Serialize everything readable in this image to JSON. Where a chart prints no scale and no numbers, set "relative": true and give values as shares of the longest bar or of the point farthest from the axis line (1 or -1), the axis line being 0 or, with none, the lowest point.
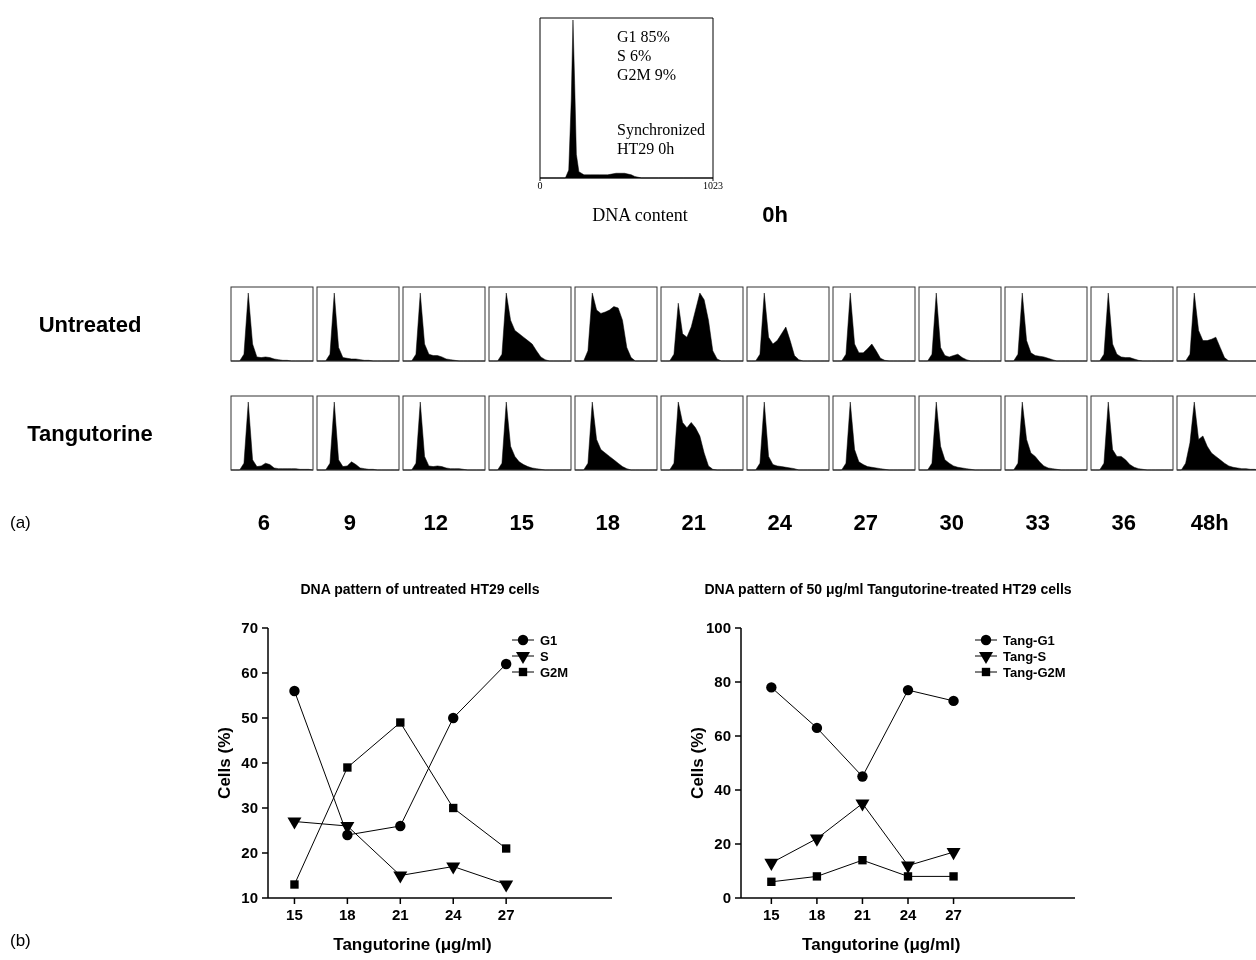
{
  "chart_data": [
    {
      "type": "area",
      "xlabel": "DNA content",
      "relative": true,
      "color": "#000000",
      "xlim": [
        0,
        1023
      ],
      "xticks": [
        0,
        1023
      ],
      "x": [
        0,
        100,
        150,
        170,
        185,
        195,
        205,
        215,
        230,
        260,
        300,
        350,
        400,
        450,
        500,
        540,
        560,
        600,
        700,
        850,
        1023
      ],
      "values": [
        0,
        0,
        0,
        0.05,
        0.5,
        1,
        0.6,
        0.15,
        0.04,
        0.02,
        0.02,
        0.02,
        0.02,
        0.03,
        0.03,
        0.02,
        0.01,
        0,
        0,
        0,
        0
      ],
      "annotations": [
        "G1 85%\nS 6%\nG2M 9%",
        "Synchronized\nHT29 0h",
        "0h"
      ]
    },
    {
      "type": "area",
      "ylabel": "Untreated",
      "relative": true,
      "color": "#000000",
      "categories": [
        null,
        null,
        null,
        null,
        null,
        null,
        null,
        null,
        null,
        null,
        null,
        null,
        null,
        null,
        null,
        null,
        null,
        null,
        null,
        null
      ],
      "values": [
        0,
        0,
        0,
        0.1,
        1,
        0.25,
        0.06,
        0.05,
        0.06,
        0.05,
        0.03,
        0.02,
        0.01,
        0.01,
        0,
        0,
        0,
        0,
        0,
        0
      ]
    },
    {
      "type": "area",
      "relative": true,
      "color": "#000000",
      "categories": [
        null,
        null,
        null,
        null,
        null,
        null,
        null,
        null,
        null,
        null,
        null,
        null,
        null,
        null,
        null,
        null,
        null,
        null,
        null,
        null
      ],
      "values": [
        0,
        0,
        0,
        0.1,
        1,
        0.2,
        0.05,
        0.04,
        0.03,
        0.03,
        0.02,
        0.01,
        0.01,
        0,
        0,
        0,
        0,
        0,
        0,
        0
      ]
    },
    {
      "type": "area",
      "relative": true,
      "color": "#000000",
      "categories": [
        null,
        null,
        null,
        null,
        null,
        null,
        null,
        null,
        null,
        null,
        null,
        null,
        null,
        null,
        null,
        null,
        null,
        null,
        null,
        null
      ],
      "values": [
        0,
        0,
        0,
        0.1,
        1,
        0.25,
        0.1,
        0.08,
        0.08,
        0.06,
        0.03,
        0.02,
        0.01,
        0,
        0,
        0,
        0,
        0,
        0,
        0
      ]
    },
    {
      "type": "area",
      "relative": true,
      "color": "#000000",
      "categories": [
        null,
        null,
        null,
        null,
        null,
        null,
        null,
        null,
        null,
        null,
        null,
        null,
        null,
        null,
        null,
        null,
        null,
        null,
        null,
        null
      ],
      "values": [
        0,
        0,
        0,
        0.1,
        1,
        0.6,
        0.45,
        0.4,
        0.35,
        0.3,
        0.25,
        0.15,
        0.06,
        0.02,
        0,
        0,
        0,
        0,
        0,
        0
      ]
    },
    {
      "type": "area",
      "relative": true,
      "color": "#000000",
      "categories": [
        null,
        null,
        null,
        null,
        null,
        null,
        null,
        null,
        null,
        null,
        null,
        null,
        null,
        null,
        null,
        null,
        null,
        null,
        null,
        null
      ],
      "values": [
        0,
        0,
        0,
        0.15,
        1,
        0.75,
        0.7,
        0.72,
        0.75,
        0.8,
        0.78,
        0.6,
        0.2,
        0.05,
        0,
        0,
        0,
        0,
        0,
        0
      ]
    },
    {
      "type": "area",
      "relative": true,
      "color": "#000000",
      "categories": [
        null,
        null,
        null,
        null,
        null,
        null,
        null,
        null,
        null,
        null,
        null,
        null,
        null,
        null,
        null,
        null,
        null,
        null,
        null,
        null
      ],
      "values": [
        0,
        0,
        0,
        0.1,
        0.85,
        0.4,
        0.35,
        0.5,
        0.75,
        1,
        0.9,
        0.6,
        0.15,
        0.03,
        0,
        0,
        0,
        0,
        0,
        0
      ]
    },
    {
      "type": "area",
      "relative": true,
      "color": "#000000",
      "categories": [
        null,
        null,
        null,
        null,
        null,
        null,
        null,
        null,
        null,
        null,
        null,
        null,
        null,
        null,
        null,
        null,
        null,
        null,
        null,
        null
      ],
      "values": [
        0,
        0,
        0,
        0.1,
        1,
        0.35,
        0.25,
        0.3,
        0.4,
        0.5,
        0.3,
        0.08,
        0.02,
        0,
        0,
        0,
        0,
        0,
        0,
        0
      ]
    },
    {
      "type": "area",
      "relative": true,
      "color": "#000000",
      "categories": [
        null,
        null,
        null,
        null,
        null,
        null,
        null,
        null,
        null,
        null,
        null,
        null,
        null,
        null,
        null,
        null,
        null,
        null,
        null,
        null
      ],
      "values": [
        0,
        0,
        0,
        0.1,
        1,
        0.25,
        0.12,
        0.12,
        0.18,
        0.25,
        0.15,
        0.04,
        0.01,
        0,
        0,
        0,
        0,
        0,
        0,
        0
      ]
    },
    {
      "type": "area",
      "relative": true,
      "color": "#000000",
      "categories": [
        null,
        null,
        null,
        null,
        null,
        null,
        null,
        null,
        null,
        null,
        null,
        null,
        null,
        null,
        null,
        null,
        null,
        null,
        null,
        null
      ],
      "values": [
        0,
        0,
        0,
        0.1,
        1,
        0.2,
        0.08,
        0.06,
        0.08,
        0.1,
        0.05,
        0.02,
        0,
        0,
        0,
        0,
        0,
        0,
        0,
        0
      ]
    },
    {
      "type": "area",
      "relative": true,
      "color": "#000000",
      "categories": [
        null,
        null,
        null,
        null,
        null,
        null,
        null,
        null,
        null,
        null,
        null,
        null,
        null,
        null,
        null,
        null,
        null,
        null,
        null,
        null
      ],
      "values": [
        0,
        0,
        0,
        0.1,
        1,
        0.3,
        0.12,
        0.08,
        0.07,
        0.06,
        0.04,
        0.02,
        0,
        0,
        0,
        0,
        0,
        0,
        0,
        0
      ]
    },
    {
      "type": "area",
      "relative": true,
      "color": "#000000",
      "categories": [
        null,
        null,
        null,
        null,
        null,
        null,
        null,
        null,
        null,
        null,
        null,
        null,
        null,
        null,
        null,
        null,
        null,
        null,
        null,
        null
      ],
      "values": [
        0,
        0,
        0,
        0.1,
        1,
        0.25,
        0.1,
        0.06,
        0.05,
        0.05,
        0.03,
        0.01,
        0,
        0,
        0,
        0,
        0,
        0,
        0,
        0
      ]
    },
    {
      "type": "area",
      "relative": true,
      "color": "#000000",
      "categories": [
        null,
        null,
        null,
        null,
        null,
        null,
        null,
        null,
        null,
        null,
        null,
        null,
        null,
        null,
        null,
        null,
        null,
        null,
        null,
        null
      ],
      "values": [
        0,
        0,
        0,
        0.1,
        1,
        0.45,
        0.3,
        0.3,
        0.32,
        0.35,
        0.2,
        0.05,
        0,
        0,
        0,
        0,
        0,
        0,
        0,
        0
      ]
    },
    {
      "type": "area",
      "ylabel": "Tangutorine",
      "xlabel": "6",
      "annotations": [
        "(a)"
      ],
      "relative": true,
      "color": "#000000",
      "categories": [
        null,
        null,
        null,
        null,
        null,
        null,
        null,
        null,
        null,
        null,
        null,
        null,
        null,
        null,
        null,
        null,
        null,
        null,
        null,
        null
      ],
      "values": [
        0,
        0,
        0,
        0.1,
        1,
        0.15,
        0.05,
        0.06,
        0.1,
        0.08,
        0.03,
        0.02,
        0.02,
        0.02,
        0.02,
        0.02,
        0.01,
        0.01,
        0.01,
        0
      ]
    },
    {
      "type": "area",
      "xlabel": "9",
      "relative": true,
      "color": "#000000",
      "categories": [
        null,
        null,
        null,
        null,
        null,
        null,
        null,
        null,
        null,
        null,
        null,
        null,
        null,
        null,
        null,
        null,
        null,
        null,
        null,
        null
      ],
      "values": [
        0,
        0,
        0,
        0.1,
        1,
        0.15,
        0.05,
        0.06,
        0.12,
        0.08,
        0.03,
        0.02,
        0.01,
        0.01,
        0,
        0,
        0,
        0,
        0,
        0
      ]
    },
    {
      "type": "area",
      "xlabel": "12",
      "relative": true,
      "color": "#000000",
      "categories": [
        null,
        null,
        null,
        null,
        null,
        null,
        null,
        null,
        null,
        null,
        null,
        null,
        null,
        null,
        null,
        null,
        null,
        null,
        null,
        null
      ],
      "values": [
        0,
        0,
        0,
        0.1,
        1,
        0.2,
        0.06,
        0.05,
        0.06,
        0.05,
        0.03,
        0.02,
        0.02,
        0.02,
        0.01,
        0,
        0,
        0,
        0,
        0
      ]
    },
    {
      "type": "area",
      "xlabel": "15",
      "relative": true,
      "color": "#000000",
      "categories": [
        null,
        null,
        null,
        null,
        null,
        null,
        null,
        null,
        null,
        null,
        null,
        null,
        null,
        null,
        null,
        null,
        null,
        null,
        null,
        null
      ],
      "values": [
        0,
        0,
        0,
        0.1,
        1,
        0.35,
        0.2,
        0.12,
        0.08,
        0.05,
        0.03,
        0.02,
        0.01,
        0,
        0,
        0,
        0,
        0,
        0,
        0
      ]
    },
    {
      "type": "area",
      "xlabel": "18",
      "relative": true,
      "color": "#000000",
      "categories": [
        null,
        null,
        null,
        null,
        null,
        null,
        null,
        null,
        null,
        null,
        null,
        null,
        null,
        null,
        null,
        null,
        null,
        null,
        null,
        null
      ],
      "values": [
        0,
        0,
        0,
        0.1,
        1,
        0.45,
        0.3,
        0.25,
        0.2,
        0.15,
        0.1,
        0.05,
        0.02,
        0,
        0,
        0,
        0,
        0,
        0,
        0
      ]
    },
    {
      "type": "area",
      "xlabel": "21",
      "relative": true,
      "color": "#000000",
      "categories": [
        null,
        null,
        null,
        null,
        null,
        null,
        null,
        null,
        null,
        null,
        null,
        null,
        null,
        null,
        null,
        null,
        null,
        null,
        null,
        null
      ],
      "values": [
        0,
        0,
        0,
        0.1,
        1,
        0.7,
        0.62,
        0.7,
        0.62,
        0.5,
        0.25,
        0.06,
        0.01,
        0,
        0,
        0,
        0,
        0,
        0,
        0
      ]
    },
    {
      "type": "area",
      "xlabel": "24",
      "relative": true,
      "color": "#000000",
      "categories": [
        null,
        null,
        null,
        null,
        null,
        null,
        null,
        null,
        null,
        null,
        null,
        null,
        null,
        null,
        null,
        null,
        null,
        null,
        null,
        null
      ],
      "values": [
        0,
        0,
        0,
        0.1,
        1,
        0.2,
        0.08,
        0.06,
        0.05,
        0.04,
        0.03,
        0.02,
        0,
        0,
        0,
        0,
        0,
        0,
        0,
        0
      ]
    },
    {
      "type": "area",
      "xlabel": "27",
      "relative": true,
      "color": "#000000",
      "categories": [
        null,
        null,
        null,
        null,
        null,
        null,
        null,
        null,
        null,
        null,
        null,
        null,
        null,
        null,
        null,
        null,
        null,
        null,
        null,
        null
      ],
      "values": [
        0,
        0,
        0,
        0.1,
        1,
        0.3,
        0.12,
        0.08,
        0.05,
        0.04,
        0.03,
        0.02,
        0.01,
        0,
        0,
        0,
        0,
        0,
        0,
        0
      ]
    },
    {
      "type": "area",
      "xlabel": "30",
      "relative": true,
      "color": "#000000",
      "categories": [
        null,
        null,
        null,
        null,
        null,
        null,
        null,
        null,
        null,
        null,
        null,
        null,
        null,
        null,
        null,
        null,
        null,
        null,
        null,
        null
      ],
      "values": [
        0,
        0,
        0,
        0.1,
        1,
        0.35,
        0.15,
        0.1,
        0.06,
        0.04,
        0.03,
        0.02,
        0.01,
        0,
        0,
        0,
        0,
        0,
        0,
        0
      ]
    },
    {
      "type": "area",
      "xlabel": "33",
      "relative": true,
      "color": "#000000",
      "categories": [
        null,
        null,
        null,
        null,
        null,
        null,
        null,
        null,
        null,
        null,
        null,
        null,
        null,
        null,
        null,
        null,
        null,
        null,
        null,
        null
      ],
      "values": [
        0,
        0,
        0,
        0.1,
        1,
        0.45,
        0.25,
        0.2,
        0.12,
        0.06,
        0.03,
        0.02,
        0.01,
        0,
        0,
        0,
        0,
        0,
        0,
        0
      ]
    },
    {
      "type": "area",
      "xlabel": "36",
      "relative": true,
      "color": "#000000",
      "categories": [
        null,
        null,
        null,
        null,
        null,
        null,
        null,
        null,
        null,
        null,
        null,
        null,
        null,
        null,
        null,
        null,
        null,
        null,
        null,
        null
      ],
      "values": [
        0,
        0,
        0,
        0.1,
        1,
        0.3,
        0.2,
        0.2,
        0.15,
        0.08,
        0.04,
        0.02,
        0.01,
        0,
        0,
        0,
        0,
        0,
        0,
        0
      ]
    },
    {
      "type": "area",
      "xlabel": "48h",
      "relative": true,
      "color": "#000000",
      "categories": [
        null,
        null,
        null,
        null,
        null,
        null,
        null,
        null,
        null,
        null,
        null,
        null,
        null,
        null,
        null,
        null,
        null,
        null,
        null,
        null
      ],
      "values": [
        0,
        0,
        0.1,
        0.4,
        1,
        0.45,
        0.5,
        0.35,
        0.25,
        0.2,
        0.15,
        0.1,
        0.06,
        0.04,
        0.03,
        0.02,
        0.02,
        0.01,
        0.01,
        0
      ]
    },
    {
      "type": "line",
      "title": "DNA pattern of untreated HT29 cells",
      "xlabel": "Tangutorine (μg/ml)",
      "ylabel": "Cells (%)",
      "annotations": [
        "(b)"
      ],
      "x": [
        15,
        18,
        21,
        24,
        27
      ],
      "xlim": [
        13.5,
        33
      ],
      "xticks": [
        15,
        18,
        21,
        24,
        27
      ],
      "ylim": [
        10,
        70
      ],
      "yticks": [
        10,
        20,
        30,
        40,
        50,
        60,
        70
      ],
      "legend": "top right",
      "series": [
        {
          "name": "G1",
          "color": "#000000",
          "marker": "circle",
          "values": [
            56,
            24,
            26,
            50,
            62
          ]
        },
        {
          "name": "S",
          "color": "#000000",
          "marker": "triangle",
          "values": [
            27,
            26,
            15,
            17,
            13
          ]
        },
        {
          "name": "G2M",
          "color": "#000000",
          "marker": "square",
          "values": [
            13,
            39,
            49,
            30,
            21
          ]
        }
      ]
    },
    {
      "type": "line",
      "title": "DNA pattern of 50 μg/ml Tangutorine-treated HT29 cells",
      "xlabel": "Tangutorine (μg/ml)",
      "ylabel": "Cells (%)",
      "x": [
        15,
        18,
        21,
        24,
        27
      ],
      "xlim": [
        13,
        35
      ],
      "xticks": [
        15,
        18,
        21,
        24,
        27
      ],
      "ylim": [
        0,
        100
      ],
      "yticks": [
        0,
        20,
        40,
        60,
        80,
        100
      ],
      "legend": "top right",
      "series": [
        {
          "name": "Tang-G1",
          "color": "#000000",
          "marker": "circle",
          "values": [
            78,
            63,
            45,
            77,
            73
          ]
        },
        {
          "name": "Tang-S",
          "color": "#000000",
          "marker": "triangle",
          "values": [
            13,
            22,
            35,
            12,
            17
          ]
        },
        {
          "name": "Tang-G2M",
          "color": "#000000",
          "marker": "square",
          "values": [
            6,
            8,
            14,
            8,
            8
          ]
        }
      ]
    }
  ]
}
